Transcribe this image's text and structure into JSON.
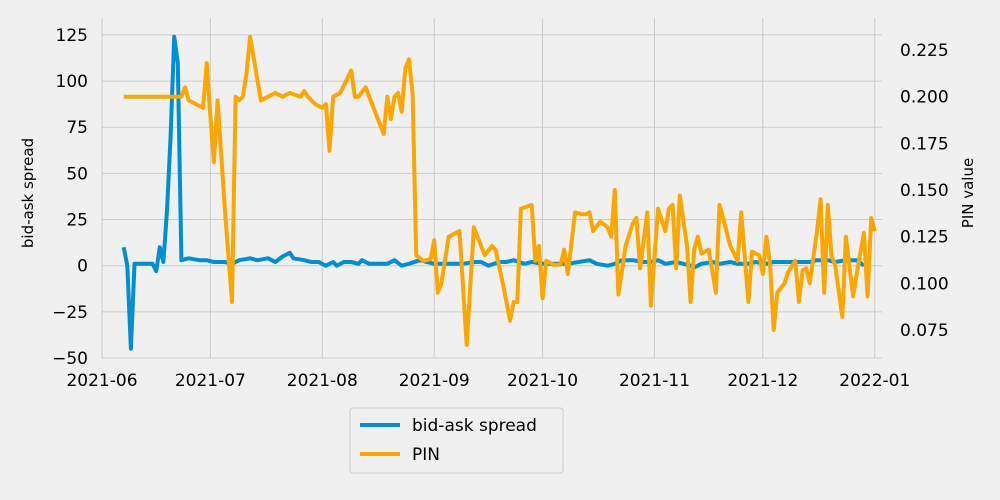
{
  "chart_data": {
    "type": "line",
    "title": "",
    "xlabel": "",
    "ylabel_left": "bid-ask spread",
    "ylabel_right": "PIN value",
    "x_ticks": [
      "2021-06",
      "2021-07",
      "2021-08",
      "2021-09",
      "2021-10",
      "2021-11",
      "2021-12",
      "2022-01"
    ],
    "y_left_ticks": [
      -50,
      -25,
      0,
      25,
      50,
      75,
      100,
      125
    ],
    "y_right_ticks": [
      0.075,
      0.1,
      0.125,
      0.15,
      0.175,
      0.2,
      0.225
    ],
    "y_right_tick_labels": [
      "0.075",
      "0.100",
      "0.125",
      "0.150",
      "0.175",
      "0.200",
      "0.225"
    ],
    "xlim": [
      "2021-06-01",
      "2022-01-03"
    ],
    "ylim_left": [
      -50,
      132
    ],
    "ylim_right": [
      0.06,
      0.24
    ],
    "grid": true,
    "legend_position": "below",
    "colors": {
      "bid_ask_spread": "#008fd5",
      "PIN": "#fca600",
      "background": "#f0f0f0",
      "grid": "#cbcbcb"
    },
    "series": [
      {
        "name": "bid-ask spread",
        "axis": "left",
        "points": [
          [
            "2021-06-07",
            10
          ],
          [
            "2021-06-08",
            0
          ],
          [
            "2021-06-09",
            -45
          ],
          [
            "2021-06-10",
            1
          ],
          [
            "2021-06-13",
            1
          ],
          [
            "2021-06-15",
            1
          ],
          [
            "2021-06-16",
            -3
          ],
          [
            "2021-06-17",
            10
          ],
          [
            "2021-06-18",
            2
          ],
          [
            "2021-06-19",
            30
          ],
          [
            "2021-06-20",
            70
          ],
          [
            "2021-06-21",
            124
          ],
          [
            "2021-06-22",
            110
          ],
          [
            "2021-06-23",
            3
          ],
          [
            "2021-06-25",
            4
          ],
          [
            "2021-06-28",
            3
          ],
          [
            "2021-06-30",
            3
          ],
          [
            "2021-07-02",
            2
          ],
          [
            "2021-07-05",
            2
          ],
          [
            "2021-07-07",
            1
          ],
          [
            "2021-07-09",
            3
          ],
          [
            "2021-07-12",
            4
          ],
          [
            "2021-07-14",
            3
          ],
          [
            "2021-07-17",
            4
          ],
          [
            "2021-07-19",
            2
          ],
          [
            "2021-07-21",
            5
          ],
          [
            "2021-07-23",
            7
          ],
          [
            "2021-07-24",
            4
          ],
          [
            "2021-07-27",
            3
          ],
          [
            "2021-07-29",
            2
          ],
          [
            "2021-07-31",
            2
          ],
          [
            "2021-08-02",
            0
          ],
          [
            "2021-08-04",
            2
          ],
          [
            "2021-08-05",
            0
          ],
          [
            "2021-08-07",
            2
          ],
          [
            "2021-08-09",
            2
          ],
          [
            "2021-08-11",
            1
          ],
          [
            "2021-08-12",
            3
          ],
          [
            "2021-08-14",
            1
          ],
          [
            "2021-08-16",
            1
          ],
          [
            "2021-08-19",
            1
          ],
          [
            "2021-08-21",
            3
          ],
          [
            "2021-08-23",
            0
          ],
          [
            "2021-08-25",
            1
          ],
          [
            "2021-08-28",
            3
          ],
          [
            "2021-08-30",
            2
          ],
          [
            "2021-09-01",
            1
          ],
          [
            "2021-09-04",
            1
          ],
          [
            "2021-09-07",
            1
          ],
          [
            "2021-09-09",
            1
          ],
          [
            "2021-09-12",
            2
          ],
          [
            "2021-09-14",
            2
          ],
          [
            "2021-09-16",
            0
          ],
          [
            "2021-09-19",
            2
          ],
          [
            "2021-09-21",
            2
          ],
          [
            "2021-09-23",
            3
          ],
          [
            "2021-09-26",
            1
          ],
          [
            "2021-09-28",
            2
          ],
          [
            "2021-10-01",
            1
          ],
          [
            "2021-10-03",
            1
          ],
          [
            "2021-10-06",
            1
          ],
          [
            "2021-10-08",
            1
          ],
          [
            "2021-10-11",
            2
          ],
          [
            "2021-10-14",
            3
          ],
          [
            "2021-10-16",
            1
          ],
          [
            "2021-10-19",
            0
          ],
          [
            "2021-10-21",
            1
          ],
          [
            "2021-10-23",
            3
          ],
          [
            "2021-10-26",
            3
          ],
          [
            "2021-10-29",
            2
          ],
          [
            "2021-10-31",
            2
          ],
          [
            "2021-11-02",
            3
          ],
          [
            "2021-11-04",
            1
          ],
          [
            "2021-11-07",
            2
          ],
          [
            "2021-11-09",
            1
          ],
          [
            "2021-11-11",
            0
          ],
          [
            "2021-11-12",
            -1
          ],
          [
            "2021-11-14",
            1
          ],
          [
            "2021-11-17",
            2
          ],
          [
            "2021-11-19",
            1
          ],
          [
            "2021-11-22",
            2
          ],
          [
            "2021-11-24",
            1
          ],
          [
            "2021-11-27",
            1
          ],
          [
            "2021-11-29",
            2
          ],
          [
            "2021-12-02",
            1
          ],
          [
            "2021-12-04",
            2
          ],
          [
            "2021-12-07",
            2
          ],
          [
            "2021-12-09",
            2
          ],
          [
            "2021-12-11",
            2
          ],
          [
            "2021-12-14",
            2
          ],
          [
            "2021-12-16",
            3
          ],
          [
            "2021-12-19",
            3
          ],
          [
            "2021-12-21",
            2
          ],
          [
            "2021-12-24",
            3
          ],
          [
            "2021-12-27",
            3
          ],
          [
            "2021-12-29",
            0
          ]
        ]
      },
      {
        "name": "PIN",
        "axis": "right",
        "points": [
          [
            "2021-06-07",
            0.2
          ],
          [
            "2021-06-10",
            0.2
          ],
          [
            "2021-06-13",
            0.2
          ],
          [
            "2021-06-17",
            0.2
          ],
          [
            "2021-06-21",
            0.2
          ],
          [
            "2021-06-23",
            0.2
          ],
          [
            "2021-06-24",
            0.205
          ],
          [
            "2021-06-25",
            0.198
          ],
          [
            "2021-06-28",
            0.195
          ],
          [
            "2021-06-29",
            0.194
          ],
          [
            "2021-06-30",
            0.218
          ],
          [
            "2021-07-01",
            0.19
          ],
          [
            "2021-07-02",
            0.165
          ],
          [
            "2021-07-03",
            0.198
          ],
          [
            "2021-07-05",
            0.14
          ],
          [
            "2021-07-07",
            0.09
          ],
          [
            "2021-07-08",
            0.2
          ],
          [
            "2021-07-09",
            0.198
          ],
          [
            "2021-07-10",
            0.2
          ],
          [
            "2021-07-11",
            0.212
          ],
          [
            "2021-07-12",
            0.232
          ],
          [
            "2021-07-15",
            0.198
          ],
          [
            "2021-07-17",
            0.2
          ],
          [
            "2021-07-19",
            0.202
          ],
          [
            "2021-07-21",
            0.2
          ],
          [
            "2021-07-23",
            0.202
          ],
          [
            "2021-07-26",
            0.2
          ],
          [
            "2021-07-27",
            0.203
          ],
          [
            "2021-07-28",
            0.2
          ],
          [
            "2021-07-30",
            0.196
          ],
          [
            "2021-08-01",
            0.194
          ],
          [
            "2021-08-02",
            0.196
          ],
          [
            "2021-08-03",
            0.171
          ],
          [
            "2021-08-04",
            0.2
          ],
          [
            "2021-08-06",
            0.202
          ],
          [
            "2021-08-09",
            0.214
          ],
          [
            "2021-08-10",
            0.2
          ],
          [
            "2021-08-11",
            0.2
          ],
          [
            "2021-08-13",
            0.205
          ],
          [
            "2021-08-15",
            0.195
          ],
          [
            "2021-08-18",
            0.18
          ],
          [
            "2021-08-19",
            0.2
          ],
          [
            "2021-08-20",
            0.188
          ],
          [
            "2021-08-21",
            0.2
          ],
          [
            "2021-08-22",
            0.202
          ],
          [
            "2021-08-23",
            0.192
          ],
          [
            "2021-08-24",
            0.215
          ],
          [
            "2021-08-25",
            0.22
          ],
          [
            "2021-08-26",
            0.202
          ],
          [
            "2021-08-27",
            0.115
          ],
          [
            "2021-08-29",
            0.112
          ],
          [
            "2021-08-31",
            0.113
          ],
          [
            "2021-09-01",
            0.123
          ],
          [
            "2021-09-02",
            0.095
          ],
          [
            "2021-09-03",
            0.1
          ],
          [
            "2021-09-05",
            0.125
          ],
          [
            "2021-09-07",
            0.127
          ],
          [
            "2021-09-08",
            0.128
          ],
          [
            "2021-09-10",
            0.067
          ],
          [
            "2021-09-12",
            0.13
          ],
          [
            "2021-09-15",
            0.115
          ],
          [
            "2021-09-17",
            0.12
          ],
          [
            "2021-09-18",
            0.118
          ],
          [
            "2021-09-20",
            0.1
          ],
          [
            "2021-09-22",
            0.08
          ],
          [
            "2021-09-23",
            0.09
          ],
          [
            "2021-09-24",
            0.09
          ],
          [
            "2021-09-25",
            0.14
          ],
          [
            "2021-09-28",
            0.142
          ],
          [
            "2021-09-29",
            0.112
          ],
          [
            "2021-09-30",
            0.12
          ],
          [
            "2021-10-01",
            0.092
          ],
          [
            "2021-10-02",
            0.112
          ],
          [
            "2021-10-04",
            0.11
          ],
          [
            "2021-10-06",
            0.11
          ],
          [
            "2021-10-07",
            0.118
          ],
          [
            "2021-10-08",
            0.105
          ],
          [
            "2021-10-10",
            0.138
          ],
          [
            "2021-10-12",
            0.137
          ],
          [
            "2021-10-13",
            0.137
          ],
          [
            "2021-10-14",
            0.138
          ],
          [
            "2021-10-15",
            0.128
          ],
          [
            "2021-10-17",
            0.133
          ],
          [
            "2021-10-19",
            0.13
          ],
          [
            "2021-10-20",
            0.125
          ],
          [
            "2021-10-21",
            0.15
          ],
          [
            "2021-10-22",
            0.094
          ],
          [
            "2021-10-24",
            0.12
          ],
          [
            "2021-10-26",
            0.132
          ],
          [
            "2021-10-27",
            0.135
          ],
          [
            "2021-10-28",
            0.108
          ],
          [
            "2021-10-30",
            0.138
          ],
          [
            "2021-10-31",
            0.088
          ],
          [
            "2021-11-02",
            0.14
          ],
          [
            "2021-11-04",
            0.128
          ],
          [
            "2021-11-05",
            0.14
          ],
          [
            "2021-11-06",
            0.142
          ],
          [
            "2021-11-07",
            0.108
          ],
          [
            "2021-11-08",
            0.147
          ],
          [
            "2021-11-10",
            0.12
          ],
          [
            "2021-11-11",
            0.09
          ],
          [
            "2021-11-12",
            0.118
          ],
          [
            "2021-11-13",
            0.125
          ],
          [
            "2021-11-14",
            0.116
          ],
          [
            "2021-11-16",
            0.118
          ],
          [
            "2021-11-18",
            0.095
          ],
          [
            "2021-11-19",
            0.142
          ],
          [
            "2021-11-20",
            0.135
          ],
          [
            "2021-11-22",
            0.12
          ],
          [
            "2021-11-24",
            0.112
          ],
          [
            "2021-11-25",
            0.138
          ],
          [
            "2021-11-27",
            0.09
          ],
          [
            "2021-11-28",
            0.117
          ],
          [
            "2021-11-30",
            0.115
          ],
          [
            "2021-12-01",
            0.105
          ],
          [
            "2021-12-02",
            0.125
          ],
          [
            "2021-12-03",
            0.11
          ],
          [
            "2021-12-04",
            0.075
          ],
          [
            "2021-12-05",
            0.095
          ],
          [
            "2021-12-07",
            0.1
          ],
          [
            "2021-12-08",
            0.106
          ],
          [
            "2021-12-10",
            0.112
          ],
          [
            "2021-12-11",
            0.09
          ],
          [
            "2021-12-12",
            0.107
          ],
          [
            "2021-12-13",
            0.108
          ],
          [
            "2021-12-14",
            0.1
          ],
          [
            "2021-12-16",
            0.128
          ],
          [
            "2021-12-17",
            0.145
          ],
          [
            "2021-12-18",
            0.095
          ],
          [
            "2021-12-19",
            0.142
          ],
          [
            "2021-12-20",
            0.115
          ],
          [
            "2021-12-21",
            0.11
          ],
          [
            "2021-12-23",
            0.082
          ],
          [
            "2021-12-24",
            0.125
          ],
          [
            "2021-12-26",
            0.093
          ],
          [
            "2021-12-27",
            0.105
          ],
          [
            "2021-12-29",
            0.127
          ],
          [
            "2021-12-30",
            0.093
          ],
          [
            "2021-12-31",
            0.135
          ],
          [
            "2022-01-01",
            0.128
          ]
        ]
      }
    ]
  }
}
